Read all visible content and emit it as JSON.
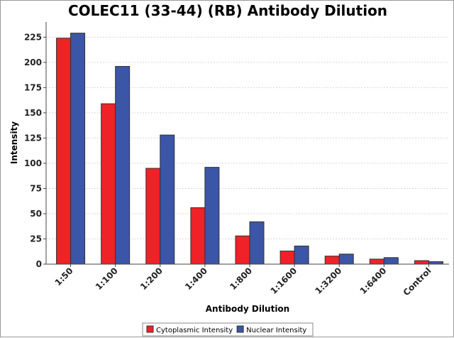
{
  "chart_data": {
    "type": "bar",
    "title": "COLEC11 (33-44) (RB) Antibody Dilution",
    "xlabel": "Antibody Dilution",
    "ylabel": "Intensity",
    "categories": [
      "1:50",
      "1:100",
      "1:200",
      "1:400",
      "1:800",
      "1:1600",
      "1:3200",
      "1:6400",
      "Control"
    ],
    "series": [
      {
        "name": "Cytoplasmic Intensity",
        "color": "#ee2227",
        "values": [
          224,
          159,
          95,
          56,
          28,
          13,
          8,
          5,
          3.5
        ]
      },
      {
        "name": "Nuclear Intensity",
        "color": "#3b55a7",
        "values": [
          229,
          196,
          128,
          96,
          42,
          18,
          10,
          6.5,
          2.5
        ]
      }
    ],
    "ylim": [
      0,
      240
    ],
    "yticks": [
      0,
      25,
      50,
      75,
      100,
      125,
      150,
      175,
      200,
      225
    ],
    "grid": true,
    "legend_position": "bottom-center"
  }
}
